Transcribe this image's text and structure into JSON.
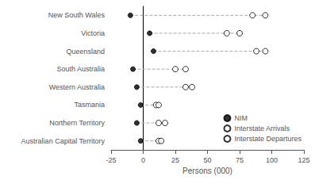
{
  "chart_data": {
    "type": "scatter",
    "categories": [
      "New South Wales",
      "Victoria",
      "Queensland",
      "South Australia",
      "Western Australia",
      "Tasmania",
      "Northern Territory",
      "Australian Capital Territory"
    ],
    "series": [
      {
        "name": "NIM",
        "color": "#000000",
        "marker": "filled",
        "values": [
          -10,
          5,
          8,
          -8,
          -5,
          -2,
          -5,
          -2
        ]
      },
      {
        "name": "Interstate Arrivals",
        "color": "#000000",
        "marker": "open",
        "values": [
          85,
          65,
          88,
          25,
          33,
          10,
          12,
          12
        ]
      },
      {
        "name": "Interstate Departures",
        "color": "#000000",
        "marker": "open",
        "values": [
          95,
          75,
          95,
          33,
          38,
          12,
          17,
          14
        ]
      }
    ],
    "xlabel": "Persons (000)",
    "xlim": [
      -25,
      125
    ],
    "xticks": [
      -25,
      0,
      25,
      50,
      75,
      100,
      125
    ],
    "grid": false,
    "legend": "lower right",
    "line_style": "dashed",
    "color": "#aaaaaa"
  }
}
